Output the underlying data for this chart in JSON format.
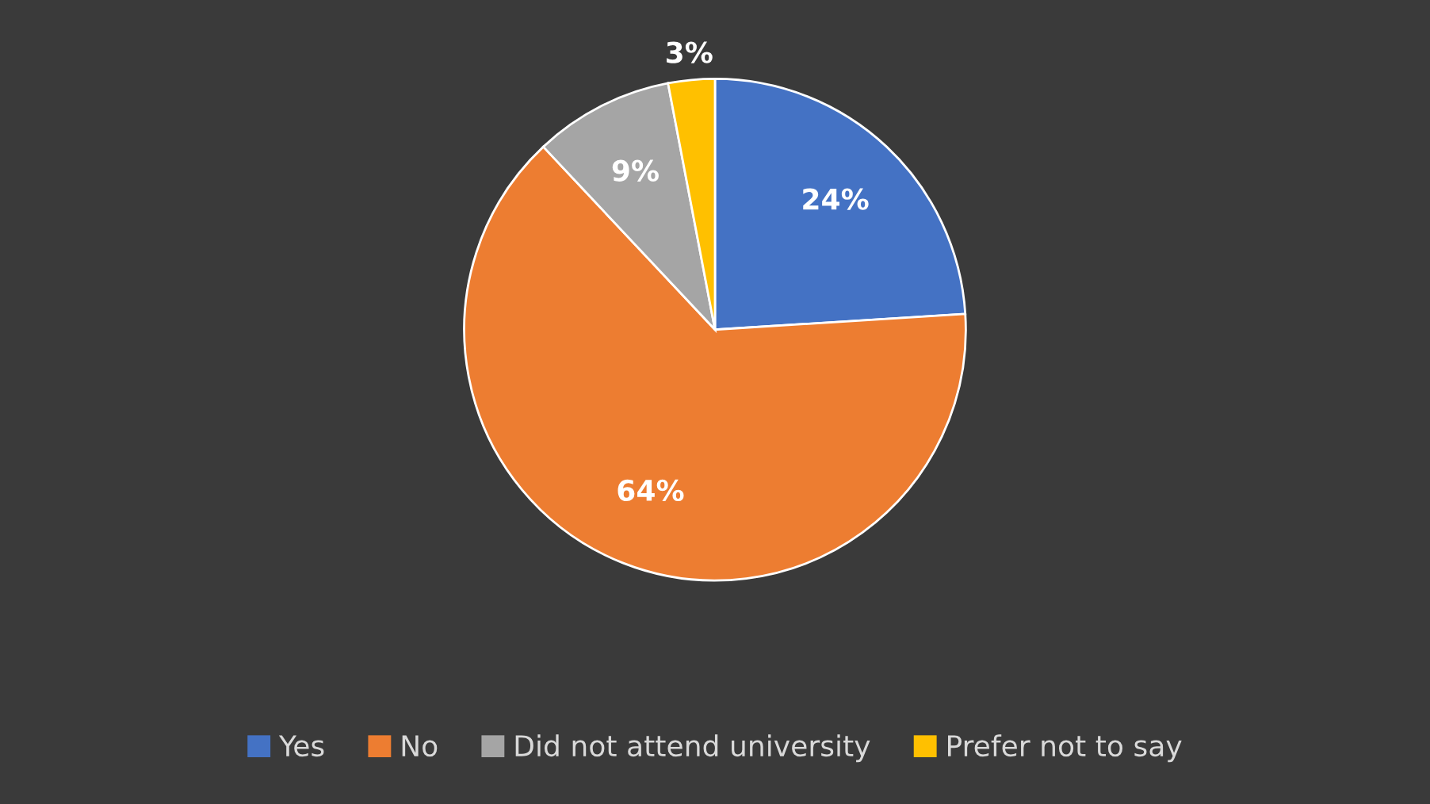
{
  "chart_data": {
    "type": "pie",
    "categories": [
      "Yes",
      "No",
      "Did not attend university",
      "Prefer not to say"
    ],
    "values": [
      24,
      64,
      9,
      3
    ],
    "colors": [
      "#4472c4",
      "#ed7d31",
      "#a5a5a5",
      "#ffc000"
    ],
    "value_labels": [
      "24%",
      "64%",
      "9%",
      "3%"
    ],
    "legend": "bottom"
  }
}
